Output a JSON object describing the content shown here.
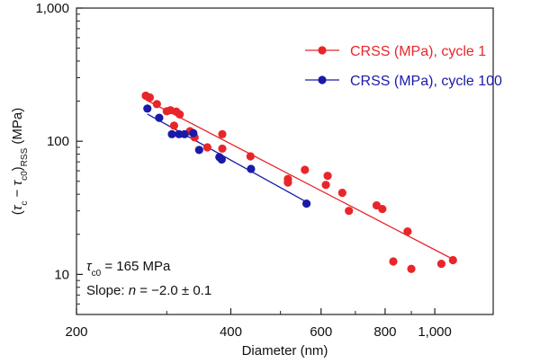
{
  "chart_data": {
    "type": "scatter",
    "xscale": "log",
    "yscale": "log",
    "xlabel": "Diameter (nm)",
    "ylabel": {
      "prefix": "(",
      "tau1": "τ",
      "sub1": "c",
      "minus": " − ",
      "tau2": "τ",
      "sub2": "c0",
      "close": ")",
      "sub3": "RSS",
      "units": " (MPa)"
    },
    "xlim": [
      200,
      1300
    ],
    "ylim": [
      5,
      1000
    ],
    "xticks": [
      {
        "value": 200,
        "label": "200"
      },
      {
        "value": 400,
        "label": "400"
      },
      {
        "value": 600,
        "label": "600"
      },
      {
        "value": 800,
        "label": "800"
      },
      {
        "value": 1000,
        "label": "1,000"
      }
    ],
    "yticks": [
      {
        "value": 10,
        "label": "10"
      },
      {
        "value": 100,
        "label": "100"
      },
      {
        "value": 1000,
        "label": "1,000"
      }
    ],
    "series": [
      {
        "name": "CRSS (MPa), cycle 1",
        "color": "#e8262a",
        "points": [
          [
            273,
            220
          ],
          [
            278,
            213
          ],
          [
            287,
            190
          ],
          [
            300,
            168
          ],
          [
            305,
            171
          ],
          [
            313,
            167
          ],
          [
            318,
            159
          ],
          [
            310,
            131
          ],
          [
            333,
            119
          ],
          [
            340,
            107
          ],
          [
            360,
            90
          ],
          [
            385,
            113
          ],
          [
            385,
            88
          ],
          [
            437,
            77
          ],
          [
            517,
            52
          ],
          [
            517,
            49
          ],
          [
            558,
            61
          ],
          [
            618,
            55
          ],
          [
            613,
            47
          ],
          [
            660,
            41
          ],
          [
            680,
            30
          ],
          [
            770,
            33
          ],
          [
            790,
            31
          ],
          [
            830,
            12.5
          ],
          [
            885,
            21
          ],
          [
            900,
            11
          ],
          [
            1030,
            12
          ],
          [
            1085,
            12.8
          ]
        ],
        "fit": [
          [
            273,
            205
          ],
          [
            1085,
            13
          ]
        ]
      },
      {
        "name": "CRSS (MPa), cycle 100",
        "color": "#1a1aa8",
        "points": [
          [
            275,
            176
          ],
          [
            290,
            150
          ],
          [
            307,
            113
          ],
          [
            317,
            113
          ],
          [
            325,
            113
          ],
          [
            338,
            115
          ],
          [
            347,
            86
          ],
          [
            380,
            76
          ],
          [
            384,
            73
          ],
          [
            438,
            62
          ],
          [
            562,
            34
          ]
        ],
        "fit": [
          [
            275,
            160
          ],
          [
            562,
            35
          ]
        ]
      }
    ],
    "annotations": {
      "tau_prefix": "τ",
      "tau_sub": "c0",
      "tau_value": " = 165 MPa",
      "slope_text": "Slope: ",
      "slope_n": "n",
      "slope_value": " = −2.0 ± 0.1"
    },
    "legend_position": "top-right"
  }
}
